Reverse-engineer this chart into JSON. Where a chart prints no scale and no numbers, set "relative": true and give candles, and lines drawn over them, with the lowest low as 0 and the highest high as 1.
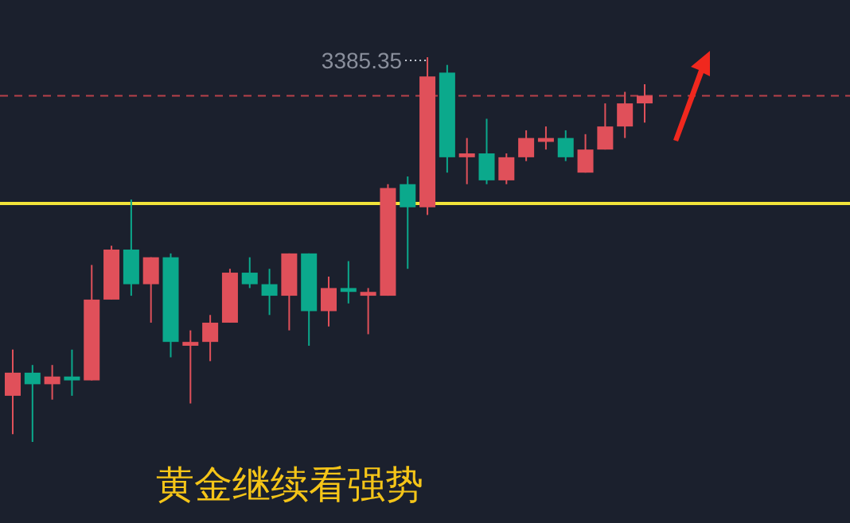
{
  "chart_data": {
    "type": "candlestick",
    "title": "黄金继续看强势",
    "relative": true,
    "categories": [
      null,
      null,
      null,
      null,
      null,
      null,
      null,
      null,
      null,
      null,
      null,
      null,
      null,
      null,
      null,
      null,
      null,
      null,
      null,
      null,
      null,
      null,
      null,
      null,
      null,
      null,
      null,
      null,
      null,
      null,
      null,
      null,
      null
    ],
    "ohlc": [
      [
        0.12,
        0.24,
        0.02,
        0.18
      ],
      [
        0.18,
        0.2,
        0,
        0.15
      ],
      [
        0.15,
        0.2,
        0.11,
        0.17
      ],
      [
        0.17,
        0.24,
        0.12,
        0.16
      ],
      [
        0.16,
        0.46,
        0.16,
        0.37
      ],
      [
        0.37,
        0.51,
        0.37,
        0.5
      ],
      [
        0.5,
        0.63,
        0.38,
        0.41
      ],
      [
        0.41,
        0.48,
        0.31,
        0.48
      ],
      [
        0.48,
        0.49,
        0.22,
        0.26
      ],
      [
        0.25,
        0.29,
        0.1,
        0.26
      ],
      [
        0.26,
        0.33,
        0.21,
        0.31
      ],
      [
        0.31,
        0.45,
        0.31,
        0.44
      ],
      [
        0.44,
        0.48,
        0.4,
        0.41
      ],
      [
        0.41,
        0.45,
        0.33,
        0.38
      ],
      [
        0.38,
        0.49,
        0.29,
        0.49
      ],
      [
        0.49,
        0.49,
        0.25,
        0.34
      ],
      [
        0.34,
        0.43,
        0.3,
        0.4
      ],
      [
        0.4,
        0.47,
        0.36,
        0.39
      ],
      [
        0.38,
        0.4,
        0.28,
        0.39
      ],
      [
        0.38,
        0.67,
        0.38,
        0.66
      ],
      [
        0.67,
        0.69,
        0.45,
        0.61
      ],
      [
        0.61,
        1,
        0.59,
        0.95
      ],
      [
        0.96,
        0.98,
        0.7,
        0.74
      ],
      [
        0.74,
        0.79,
        0.67,
        0.75
      ],
      [
        0.75,
        0.84,
        0.67,
        0.68
      ],
      [
        0.68,
        0.75,
        0.67,
        0.74
      ],
      [
        0.74,
        0.81,
        0.73,
        0.79
      ],
      [
        0.78,
        0.82,
        0.76,
        0.79
      ],
      [
        0.79,
        0.81,
        0.73,
        0.74
      ],
      [
        0.7,
        0.8,
        0.7,
        0.76
      ],
      [
        0.76,
        0.88,
        0.76,
        0.82
      ],
      [
        0.82,
        0.91,
        0.79,
        0.88
      ],
      [
        0.88,
        0.93,
        0.83,
        0.9
      ]
    ],
    "colors": [
      "#e0505a",
      "#0ba98c",
      "#e0505a",
      "#0ba98c",
      "#e0505a",
      "#e0505a",
      "#0ba98c",
      "#e0505a",
      "#0ba98c",
      "#e0505a",
      "#e0505a",
      "#e0505a",
      "#0ba98c",
      "#0ba98c",
      "#e0505a",
      "#0ba98c",
      "#e0505a",
      "#0ba98c",
      "#e0505a",
      "#e0505a",
      "#0ba98c",
      "#e0505a",
      "#0ba98c",
      "#e0505a",
      "#0ba98c",
      "#e0505a",
      "#e0505a",
      "#e0505a",
      "#0ba98c",
      "#e0505a",
      "#e0505a",
      "#e0505a",
      "#e0505a"
    ],
    "annotations": [
      "3385.35"
    ],
    "ref_lines": [
      {
        "axis": "y",
        "value": 0.62,
        "color": "#f2e43a"
      },
      {
        "axis": "y",
        "value": 0.9,
        "color": "#b8414a",
        "line_style": "dashed"
      }
    ]
  }
}
